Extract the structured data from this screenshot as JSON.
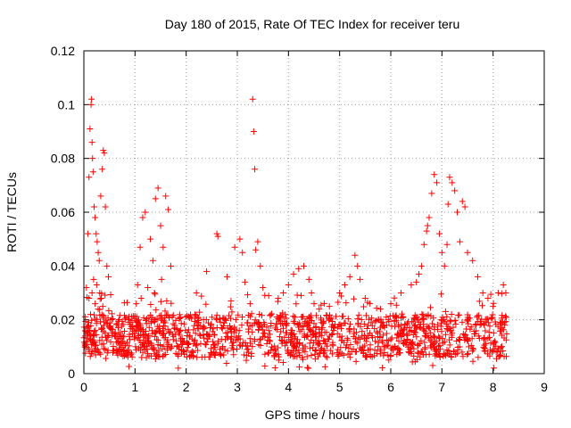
{
  "chart_data": {
    "type": "scatter",
    "title": "Day 180 of 2015, Rate Of TEC Index for receiver teru",
    "xlabel": "GPS time / hours",
    "ylabel": "ROTI / TECUs",
    "xlim": [
      0,
      9
    ],
    "ylim": [
      0,
      0.12
    ],
    "xticks": [
      0,
      1,
      2,
      3,
      4,
      5,
      6,
      7,
      8,
      9
    ],
    "xtick_labels": [
      "0",
      "1",
      "2",
      "3",
      "4",
      "5",
      "6",
      "7",
      "8",
      "9"
    ],
    "yticks": [
      0,
      0.02,
      0.04,
      0.06,
      0.08,
      0.1,
      0.12
    ],
    "ytick_labels": [
      "0",
      "0.02",
      "0.04",
      "0.06",
      "0.08",
      "0.1",
      "0.12"
    ],
    "grid": true,
    "marker": "+",
    "color": "#ff0000",
    "series": [
      {
        "name": "ROTI",
        "x": [
          0.05,
          0.08,
          0.1,
          0.12,
          0.14,
          0.15,
          0.16,
          0.17,
          0.18,
          0.2,
          0.22,
          0.24,
          0.26,
          0.28,
          0.3,
          0.33,
          0.36,
          0.38,
          0.4,
          0.42,
          0.45,
          0.48,
          0.1,
          0.13,
          0.16,
          0.19,
          0.22,
          0.25,
          0.28,
          0.31,
          0.34,
          0.37,
          1.05,
          1.1,
          1.15,
          1.2,
          1.3,
          1.35,
          1.4,
          1.45,
          1.5,
          1.55,
          1.6,
          1.65,
          1.7,
          1.12,
          1.25,
          1.38,
          1.52,
          1.62,
          2.2,
          2.4,
          2.6,
          2.62,
          2.8,
          2.95,
          3.05,
          3.1,
          3.15,
          3.25,
          3.3,
          3.32,
          3.34,
          3.36,
          3.4,
          3.45,
          3.5,
          3.8,
          3.9,
          4.0,
          4.1,
          4.2,
          4.3,
          4.4,
          4.45,
          4.5,
          4.6,
          4.8,
          5.0,
          5.1,
          5.2,
          5.3,
          5.35,
          5.4,
          5.5,
          5.8,
          6.0,
          6.2,
          6.4,
          6.5,
          6.55,
          6.6,
          6.65,
          6.7,
          6.72,
          6.75,
          6.8,
          6.85,
          6.9,
          6.95,
          7.0,
          7.05,
          7.1,
          7.12,
          7.15,
          7.2,
          7.25,
          7.3,
          7.35,
          7.4,
          7.45,
          7.5,
          7.6,
          7.7,
          7.8,
          7.9,
          8.0,
          8.1,
          8.2,
          8.25
        ],
        "y": [
          0.032,
          0.052,
          0.073,
          0.091,
          0.1,
          0.102,
          0.086,
          0.08,
          0.075,
          0.062,
          0.058,
          0.052,
          0.049,
          0.045,
          0.042,
          0.066,
          0.076,
          0.083,
          0.082,
          0.062,
          0.04,
          0.036,
          0.028,
          0.022,
          0.03,
          0.035,
          0.026,
          0.033,
          0.024,
          0.03,
          0.028,
          0.025,
          0.033,
          0.047,
          0.058,
          0.06,
          0.05,
          0.042,
          0.065,
          0.069,
          0.055,
          0.047,
          0.066,
          0.061,
          0.04,
          0.028,
          0.032,
          0.03,
          0.035,
          0.027,
          0.03,
          0.038,
          0.052,
          0.051,
          0.036,
          0.047,
          0.05,
          0.045,
          0.034,
          0.026,
          0.102,
          0.09,
          0.076,
          0.046,
          0.049,
          0.04,
          0.032,
          0.028,
          0.03,
          0.033,
          0.037,
          0.039,
          0.04,
          0.035,
          0.03,
          0.026,
          0.024,
          0.025,
          0.03,
          0.033,
          0.036,
          0.044,
          0.04,
          0.035,
          0.028,
          0.024,
          0.026,
          0.03,
          0.033,
          0.034,
          0.037,
          0.04,
          0.048,
          0.053,
          0.055,
          0.058,
          0.067,
          0.074,
          0.071,
          0.052,
          0.045,
          0.04,
          0.048,
          0.063,
          0.073,
          0.071,
          0.068,
          0.06,
          0.049,
          0.064,
          0.062,
          0.045,
          0.042,
          0.036,
          0.03,
          0.028,
          0.025,
          0.03,
          0.033,
          0.03
        ]
      }
    ],
    "background_band": {
      "x_range": [
        0,
        8.27
      ],
      "y_range": [
        0.002,
        0.03
      ],
      "typical_range": [
        0.006,
        0.022
      ]
    }
  }
}
